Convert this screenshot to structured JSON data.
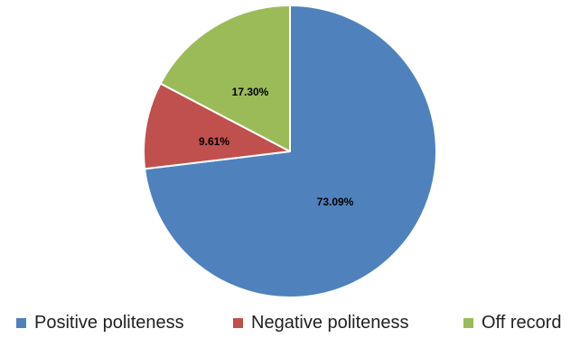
{
  "chart_data": {
    "type": "pie",
    "slices": [
      {
        "label": "Positive politeness",
        "value": 73.09,
        "display": "73.09%",
        "color": "#4F81BD"
      },
      {
        "label": "Negative politeness",
        "value": 9.61,
        "display": "9.61%",
        "color": "#C0504D"
      },
      {
        "label": "Off record",
        "value": 17.3,
        "display": "17.30%",
        "color": "#9BBB59"
      }
    ],
    "legend_position": "bottom"
  }
}
